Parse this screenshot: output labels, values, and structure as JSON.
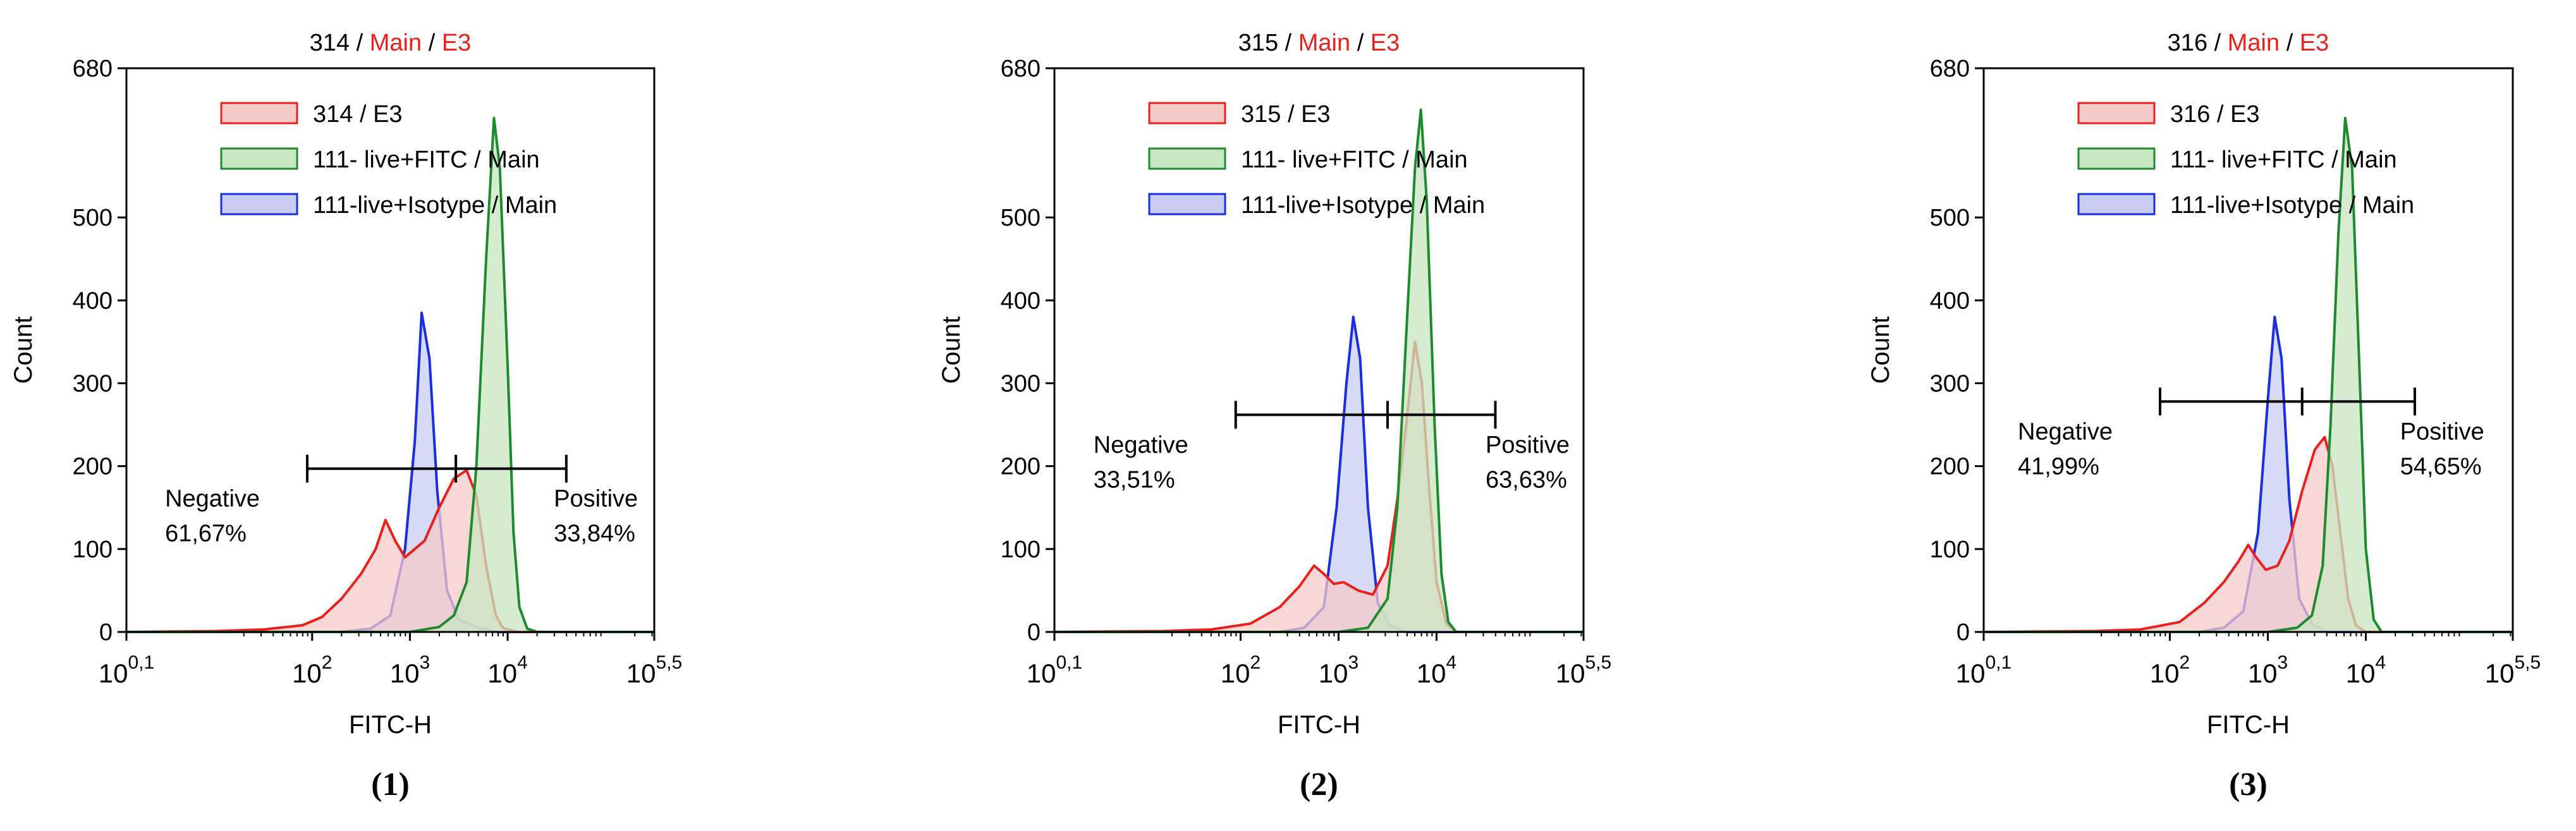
{
  "colors": {
    "red": "#e8201e",
    "red_fill": "#f6c9c9",
    "green": "#1e8a2e",
    "green_fill": "#c8e6c2",
    "blue": "#1a2ee0",
    "blue_fill": "#c9cdf2",
    "title_accent": "#e8201e",
    "axis": "#000000"
  },
  "chart_data": [
    {
      "type": "histogram",
      "panel_label": "(1)",
      "title": {
        "sample": "314",
        "sep1": " / ",
        "gate": "Main",
        "sep2": " / ",
        "sub": "E3"
      },
      "xlabel": "FITC-H",
      "ylabel": "Count",
      "xscale": "log10",
      "xlim": [
        0.1,
        5.5
      ],
      "ylim": [
        0,
        680
      ],
      "yticks": [
        "0",
        "100",
        "200",
        "300",
        "400",
        "500",
        "680"
      ],
      "xticks": [
        {
          "base": "10",
          "exp": "0,1"
        },
        {
          "base": "10",
          "exp": "2"
        },
        {
          "base": "10",
          "exp": "3"
        },
        {
          "base": "10",
          "exp": "4"
        },
        {
          "base": "10",
          "exp": "5,5"
        }
      ],
      "legend": [
        "314 / E3",
        "111- live+FITC / Main",
        "111-live+Isotype / Main"
      ],
      "gate": {
        "left_log": 1.95,
        "split_log": 3.47,
        "right_log": 4.6,
        "y": 197
      },
      "negative": {
        "label": "Negative",
        "percent": "61,67%"
      },
      "positive": {
        "label": "Positive",
        "percent": "33,84%"
      },
      "series": [
        {
          "name": "314 / E3",
          "color_key": "red",
          "points": [
            [
              0.1,
              0
            ],
            [
              1.0,
              1
            ],
            [
              1.5,
              3
            ],
            [
              1.9,
              8
            ],
            [
              2.1,
              18
            ],
            [
              2.3,
              40
            ],
            [
              2.5,
              70
            ],
            [
              2.65,
              100
            ],
            [
              2.75,
              135
            ],
            [
              2.85,
              110
            ],
            [
              2.95,
              90
            ],
            [
              3.05,
              100
            ],
            [
              3.15,
              110
            ],
            [
              3.3,
              150
            ],
            [
              3.45,
              185
            ],
            [
              3.58,
              195
            ],
            [
              3.68,
              165
            ],
            [
              3.78,
              80
            ],
            [
              3.88,
              20
            ],
            [
              3.95,
              5
            ],
            [
              4.1,
              0
            ],
            [
              5.5,
              0
            ]
          ]
        },
        {
          "name": "111- live+FITC / Main",
          "color_key": "green",
          "points": [
            [
              0.1,
              0
            ],
            [
              3.0,
              0
            ],
            [
              3.3,
              6
            ],
            [
              3.45,
              20
            ],
            [
              3.58,
              60
            ],
            [
              3.68,
              200
            ],
            [
              3.78,
              450
            ],
            [
              3.86,
              620
            ],
            [
              3.92,
              560
            ],
            [
              4.0,
              320
            ],
            [
              4.06,
              120
            ],
            [
              4.12,
              30
            ],
            [
              4.2,
              4
            ],
            [
              4.3,
              0
            ],
            [
              5.5,
              0
            ]
          ]
        },
        {
          "name": "111-live+Isotype / Main",
          "color_key": "blue",
          "points": [
            [
              0.1,
              0
            ],
            [
              2.3,
              0
            ],
            [
              2.6,
              4
            ],
            [
              2.8,
              20
            ],
            [
              2.95,
              100
            ],
            [
              3.05,
              230
            ],
            [
              3.12,
              385
            ],
            [
              3.2,
              330
            ],
            [
              3.28,
              170
            ],
            [
              3.38,
              50
            ],
            [
              3.5,
              15
            ],
            [
              3.7,
              5
            ],
            [
              3.9,
              0
            ],
            [
              5.5,
              0
            ]
          ]
        }
      ]
    },
    {
      "type": "histogram",
      "panel_label": "(2)",
      "title": {
        "sample": "315",
        "sep1": " / ",
        "gate": "Main",
        "sep2": " / ",
        "sub": "E3"
      },
      "xlabel": "FITC-H",
      "ylabel": "Count",
      "xscale": "log10",
      "xlim": [
        0.1,
        5.5
      ],
      "ylim": [
        0,
        680
      ],
      "yticks": [
        "0",
        "100",
        "200",
        "300",
        "400",
        "500",
        "680"
      ],
      "xticks": [
        {
          "base": "10",
          "exp": "0,1"
        },
        {
          "base": "10",
          "exp": "2"
        },
        {
          "base": "10",
          "exp": "3"
        },
        {
          "base": "10",
          "exp": "4"
        },
        {
          "base": "10",
          "exp": "5,5"
        }
      ],
      "legend": [
        "315 / E3",
        "111- live+FITC / Main",
        "111-live+Isotype / Main"
      ],
      "gate": {
        "left_log": 1.95,
        "split_log": 3.5,
        "right_log": 4.6,
        "y": 262
      },
      "negative": {
        "label": "Negative",
        "percent": "33,51%"
      },
      "positive": {
        "label": "Positive",
        "percent": "63,63%"
      },
      "series": [
        {
          "name": "315 / E3",
          "color_key": "red",
          "points": [
            [
              0.1,
              0
            ],
            [
              1.2,
              1
            ],
            [
              1.7,
              3
            ],
            [
              2.1,
              10
            ],
            [
              2.4,
              30
            ],
            [
              2.6,
              55
            ],
            [
              2.75,
              80
            ],
            [
              2.85,
              70
            ],
            [
              2.95,
              58
            ],
            [
              3.05,
              60
            ],
            [
              3.2,
              50
            ],
            [
              3.35,
              45
            ],
            [
              3.5,
              80
            ],
            [
              3.6,
              160
            ],
            [
              3.7,
              260
            ],
            [
              3.78,
              350
            ],
            [
              3.85,
              300
            ],
            [
              3.92,
              180
            ],
            [
              4.0,
              60
            ],
            [
              4.1,
              10
            ],
            [
              4.2,
              0
            ],
            [
              5.5,
              0
            ]
          ]
        },
        {
          "name": "111- live+FITC / Main",
          "color_key": "green",
          "points": [
            [
              0.1,
              0
            ],
            [
              3.0,
              0
            ],
            [
              3.3,
              5
            ],
            [
              3.5,
              40
            ],
            [
              3.6,
              150
            ],
            [
              3.7,
              380
            ],
            [
              3.78,
              560
            ],
            [
              3.84,
              630
            ],
            [
              3.9,
              520
            ],
            [
              3.98,
              250
            ],
            [
              4.05,
              70
            ],
            [
              4.12,
              12
            ],
            [
              4.2,
              0
            ],
            [
              5.5,
              0
            ]
          ]
        },
        {
          "name": "111-live+Isotype / Main",
          "color_key": "blue",
          "points": [
            [
              0.1,
              0
            ],
            [
              2.4,
              0
            ],
            [
              2.65,
              5
            ],
            [
              2.85,
              30
            ],
            [
              2.98,
              150
            ],
            [
              3.08,
              300
            ],
            [
              3.15,
              380
            ],
            [
              3.22,
              330
            ],
            [
              3.3,
              150
            ],
            [
              3.4,
              35
            ],
            [
              3.52,
              8
            ],
            [
              3.7,
              0
            ],
            [
              5.5,
              0
            ]
          ]
        }
      ]
    },
    {
      "type": "histogram",
      "panel_label": "(3)",
      "title": {
        "sample": "316",
        "sep1": " / ",
        "gate": "Main",
        "sep2": " / ",
        "sub": "E3"
      },
      "xlabel": "FITC-H",
      "ylabel": "Count",
      "xscale": "log10",
      "xlim": [
        0.1,
        5.5
      ],
      "ylim": [
        0,
        680
      ],
      "yticks": [
        "0",
        "100",
        "200",
        "300",
        "400",
        "500",
        "680"
      ],
      "xticks": [
        {
          "base": "10",
          "exp": "0,1"
        },
        {
          "base": "10",
          "exp": "2"
        },
        {
          "base": "10",
          "exp": "3"
        },
        {
          "base": "10",
          "exp": "4"
        },
        {
          "base": "10",
          "exp": "5,5"
        }
      ],
      "legend": [
        "316 / E3",
        "111- live+FITC / Main",
        "111-live+Isotype / Main"
      ],
      "gate": {
        "left_log": 1.9,
        "split_log": 3.35,
        "right_log": 4.5,
        "y": 278
      },
      "negative": {
        "label": "Negative",
        "percent": "41,99%"
      },
      "positive": {
        "label": "Positive",
        "percent": "54,65%"
      },
      "series": [
        {
          "name": "316 / E3",
          "color_key": "red",
          "points": [
            [
              0.1,
              0
            ],
            [
              1.2,
              1
            ],
            [
              1.7,
              3
            ],
            [
              2.1,
              12
            ],
            [
              2.35,
              35
            ],
            [
              2.55,
              60
            ],
            [
              2.7,
              85
            ],
            [
              2.8,
              105
            ],
            [
              2.88,
              90
            ],
            [
              2.98,
              75
            ],
            [
              3.1,
              80
            ],
            [
              3.22,
              110
            ],
            [
              3.35,
              170
            ],
            [
              3.48,
              220
            ],
            [
              3.58,
              235
            ],
            [
              3.66,
              200
            ],
            [
              3.74,
              120
            ],
            [
              3.82,
              40
            ],
            [
              3.9,
              8
            ],
            [
              4.0,
              0
            ],
            [
              5.5,
              0
            ]
          ]
        },
        {
          "name": "111- live+FITC / Main",
          "color_key": "green",
          "points": [
            [
              0.1,
              0
            ],
            [
              3.0,
              0
            ],
            [
              3.3,
              5
            ],
            [
              3.45,
              20
            ],
            [
              3.56,
              80
            ],
            [
              3.64,
              250
            ],
            [
              3.72,
              480
            ],
            [
              3.79,
              620
            ],
            [
              3.86,
              560
            ],
            [
              3.94,
              300
            ],
            [
              4.0,
              100
            ],
            [
              4.08,
              15
            ],
            [
              4.16,
              0
            ],
            [
              5.5,
              0
            ]
          ]
        },
        {
          "name": "111-live+Isotype / Main",
          "color_key": "blue",
          "points": [
            [
              0.1,
              0
            ],
            [
              2.3,
              0
            ],
            [
              2.55,
              5
            ],
            [
              2.75,
              25
            ],
            [
              2.9,
              120
            ],
            [
              3.0,
              280
            ],
            [
              3.07,
              380
            ],
            [
              3.14,
              330
            ],
            [
              3.22,
              160
            ],
            [
              3.32,
              40
            ],
            [
              3.45,
              10
            ],
            [
              3.6,
              0
            ],
            [
              5.5,
              0
            ]
          ]
        }
      ]
    }
  ]
}
